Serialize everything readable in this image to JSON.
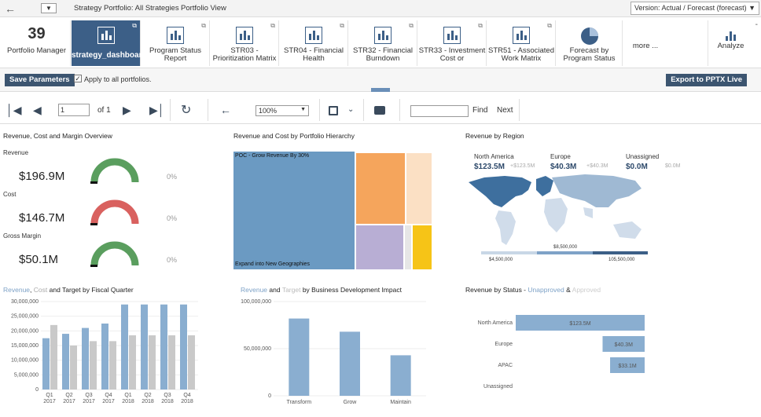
{
  "topbar": {
    "strategy_crumb": "Strategy Portfolio: All Strategies",
    "view_crumb": "Portfolio View",
    "version": "Version: Actual / Forecast (forecast) ▼"
  },
  "ribbon": {
    "count": "39",
    "count_label": "Portfolio Manager",
    "tiles": [
      {
        "label": "strategy_dashboard_"
      },
      {
        "label": "Program Status Report"
      },
      {
        "label": "STR03 - Prioritization Matrix"
      },
      {
        "label": "STR04 - Financial Health"
      },
      {
        "label": "STR32 - Financial Burndown"
      },
      {
        "label": "STR33 - Investment Cost or"
      },
      {
        "label": "STR51 - Associated Work Matrix"
      },
      {
        "label": "Forecast by Program Status"
      }
    ],
    "more": "more ...",
    "analyze": "Analyze",
    "collapse": "-"
  },
  "params": {
    "save": "Save Parameters",
    "apply_label": "Apply to all portfolios.",
    "export": "Export to PPTX Live"
  },
  "toolbar": {
    "page_value": "1",
    "of_label": "of 1",
    "zoom": "100%",
    "find": "Find",
    "next": "Next"
  },
  "overview": {
    "title": "Revenue, Cost and Margin Overview",
    "gauges": [
      {
        "label": "Revenue",
        "value": "$196.9M",
        "pct": "0%",
        "fill": 1.0,
        "color": "#5a9e5e"
      },
      {
        "label": "Cost",
        "value": "$146.7M",
        "pct": "0%",
        "fill": 1.0,
        "color": "#d9615f"
      },
      {
        "label": "Gross Margin",
        "value": "$50.1M",
        "pct": "0%",
        "fill": 1.0,
        "color": "#5a9e5e"
      }
    ]
  },
  "treemap": {
    "title": "Revenue and Cost by Portfolio Hierarchy",
    "top_label": "POC - Grow Revenue By 30%",
    "bottom_label": "Expand into New Geographies"
  },
  "region": {
    "title": "Revenue by Region",
    "regions": [
      {
        "name": "North America",
        "value": "$123.5M",
        "target": "+$123.5M"
      },
      {
        "name": "Europe",
        "value": "$40.3M",
        "target": "+$40.3M"
      },
      {
        "name": "Unassigned",
        "value": "$0.0M",
        "target": "$0.0M"
      }
    ],
    "legend": [
      "$4,500,000",
      "$8,500,000",
      "105,500,000"
    ]
  },
  "fiscal": {
    "title_rev": "Revenue",
    "title_cost": "Cost",
    "title_rest": "and Target by Fiscal Quarter"
  },
  "bizdev": {
    "title_rev": "Revenue",
    "title_and": "and",
    "title_target": "Target",
    "title_rest": "by Business Development Impact"
  },
  "status": {
    "title_main": "Revenue by Status -",
    "title_unapproved": "Unapproved",
    "title_amp": "&",
    "title_approved": "Approved"
  },
  "colors": {
    "accent": "#3c5f87",
    "bar_blue": "#8aaed0",
    "bar_grey": "#c9c9c9"
  },
  "chart_data": [
    {
      "type": "bar",
      "title": "Revenue, Cost and Target by Fiscal Quarter",
      "categories": [
        "Q1 2017",
        "Q2 2017",
        "Q3 2017",
        "Q4 2017",
        "Q1 2018",
        "Q2 2018",
        "Q3 2018",
        "Q4 2018"
      ],
      "series": [
        {
          "name": "Revenue",
          "values": [
            17500000,
            19000000,
            21000000,
            22500000,
            29000000,
            29000000,
            29000000,
            29000000
          ]
        },
        {
          "name": "Cost",
          "values": [
            22000000,
            15000000,
            16500000,
            16500000,
            18500000,
            18500000,
            18500000,
            18500000
          ]
        }
      ],
      "yticks": [
        "0",
        "5,000,000",
        "10,000,000",
        "15,000,000",
        "20,000,000",
        "25,000,000",
        "30,000,000"
      ],
      "ylim": [
        0,
        30000000
      ]
    },
    {
      "type": "bar",
      "title": "Revenue and Target by Business Development Impact",
      "categories": [
        "Transform",
        "Grow",
        "Maintain"
      ],
      "values": [
        82000000,
        68000000,
        43000000
      ],
      "yticks": [
        "0",
        "50,000,000",
        "100,000,000"
      ],
      "ylim": [
        0,
        100000000
      ]
    },
    {
      "type": "bar",
      "title": "Revenue by Status",
      "categories": [
        "North America",
        "Europe",
        "APAC",
        "Unassigned"
      ],
      "values": [
        123.5,
        40.3,
        33.1,
        0
      ],
      "labels": [
        "$123.5M",
        "$40.3M",
        "$33.1M",
        ""
      ],
      "xlim": [
        0,
        123.5
      ]
    }
  ]
}
